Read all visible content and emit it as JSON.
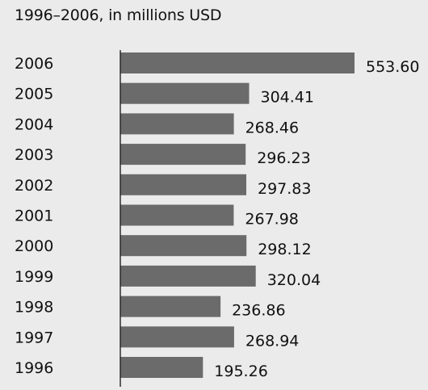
{
  "chart_data": {
    "type": "bar",
    "orientation": "horizontal",
    "title": "",
    "subtitle": "1996–2006, in millions USD",
    "xlabel": "",
    "ylabel": "",
    "categories": [
      "2006",
      "2005",
      "2004",
      "2003",
      "2002",
      "2001",
      "2000",
      "1999",
      "1998",
      "1997",
      "1996"
    ],
    "values": [
      553.6,
      304.41,
      268.46,
      296.23,
      297.83,
      267.98,
      298.12,
      320.04,
      236.86,
      268.94,
      195.26
    ],
    "value_labels": [
      "553.60",
      "304.41",
      "268.46",
      "296.23",
      "297.83",
      "267.98",
      "298.12",
      "320.04",
      "236.86",
      "268.94",
      "195.26"
    ],
    "xlim": [
      0,
      553.6
    ],
    "grid": false,
    "bar_color": "#6b6b6b",
    "axis_color": "#222222",
    "background_color": "#ebebeb"
  }
}
